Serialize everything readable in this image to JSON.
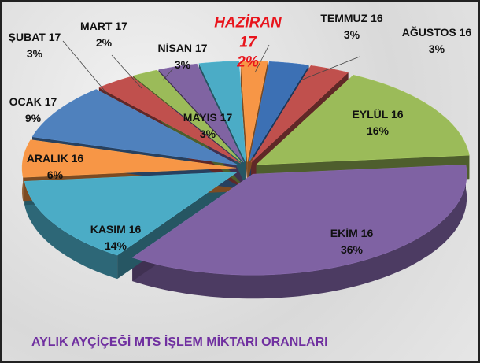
{
  "chart_data": {
    "type": "pie",
    "title": "AYLIK AYÇİÇEĞİ MTS İŞLEM MİKTARI ORANLARI",
    "categories": [
      "TEMMUZ 16",
      "AĞUSTOS 16",
      "EYLÜL 16",
      "EKİM 16",
      "KASIM 16",
      "ARALIK 16",
      "OCAK 17",
      "ŞUBAT 17",
      "MART 17",
      "NİSAN 17",
      "MAYIS 17",
      "HAZİRAN 17"
    ],
    "values": [
      3,
      3,
      16,
      36,
      14,
      6,
      9,
      3,
      2,
      3,
      3,
      2
    ],
    "value_labels": [
      "3%",
      "3%",
      "16%",
      "36%",
      "14%",
      "6%",
      "9%",
      "3%",
      "2%",
      "3%",
      "3%",
      "2%"
    ],
    "colors": [
      "#3c70b4",
      "#c0504d",
      "#9bbb59",
      "#7f62a3",
      "#4bacc6",
      "#f79646",
      "#4f81bd",
      "#c0504d",
      "#9bbb59",
      "#8064a2",
      "#4bacc6",
      "#f79646"
    ]
  }
}
